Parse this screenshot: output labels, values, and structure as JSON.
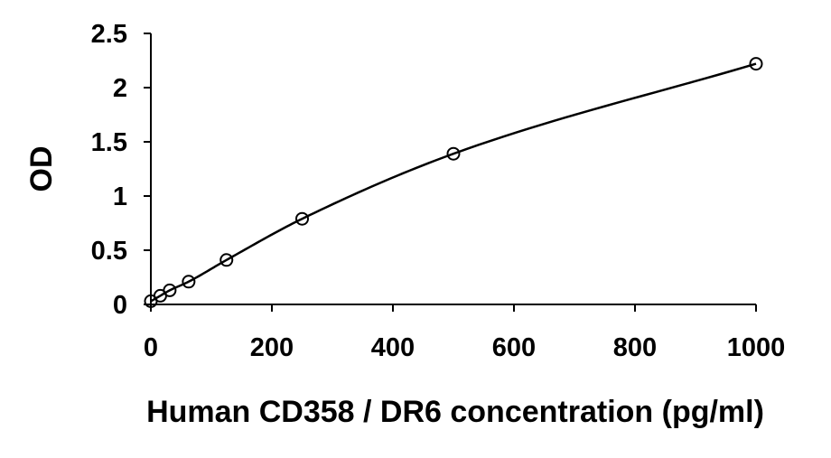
{
  "chart_data": {
    "type": "scatter",
    "title": "",
    "xlabel": "Human CD358 / DR6 concentration (pg/ml)",
    "ylabel": "OD",
    "xlim": [
      0,
      1000
    ],
    "ylim": [
      0,
      2.5
    ],
    "xticks": [
      "0",
      "200",
      "400",
      "600",
      "800",
      "1000"
    ],
    "yticks": [
      "0",
      "0.5",
      "1",
      "1.5",
      "2",
      "2.5"
    ],
    "grid": false,
    "legend": "none",
    "series": [
      {
        "x": [
          0,
          15.6,
          31.2,
          62.5,
          125,
          250,
          500,
          1000
        ],
        "y": [
          0.03,
          0.08,
          0.13,
          0.21,
          0.41,
          0.79,
          1.39,
          2.22
        ]
      }
    ],
    "fit_curve": true,
    "colors": {
      "line": "#000000",
      "marker_edge": "#000000",
      "background": "#ffffff"
    }
  }
}
